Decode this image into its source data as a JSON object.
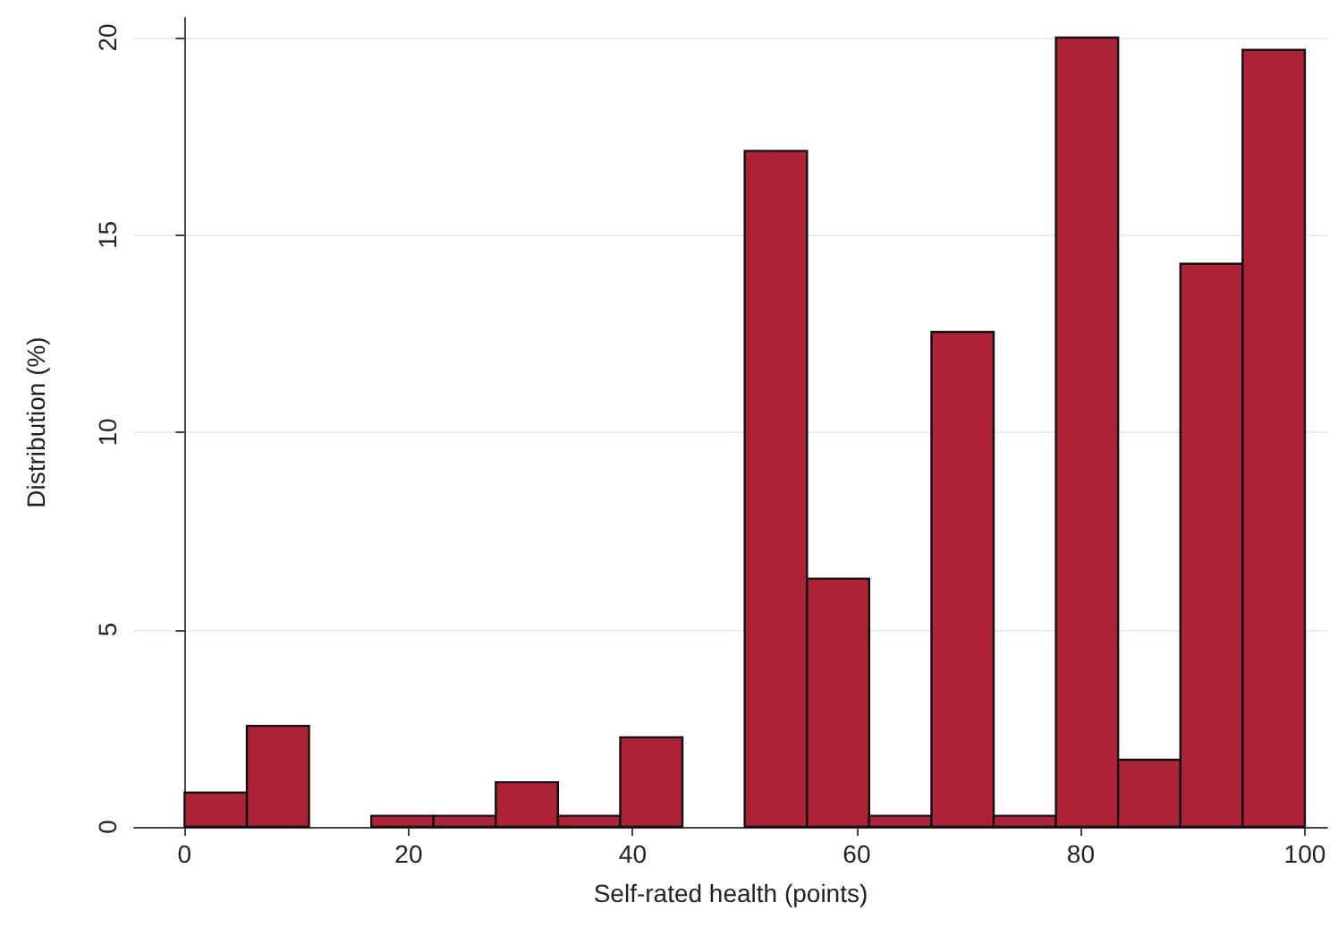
{
  "chart_data": {
    "type": "histogram",
    "xlabel": "Self-rated health (points)",
    "ylabel": "Distribution (%)",
    "bins": [
      0,
      5.56,
      11.11,
      16.67,
      22.22,
      27.78,
      33.33,
      38.89,
      44.44,
      50,
      55.56,
      61.11,
      66.67,
      72.22,
      77.78,
      83.33,
      88.89,
      94.44,
      100
    ],
    "values": [
      0.87,
      2.56,
      0,
      0.28,
      0.28,
      1.13,
      0.28,
      2.27,
      0,
      17.13,
      6.29,
      0.28,
      12.54,
      0.28,
      20.0,
      1.7,
      14.27,
      19.69
    ],
    "color": "#ae2238",
    "xlim": [
      -4.5,
      102
    ],
    "xticks": [
      0,
      20,
      40,
      60,
      80,
      100
    ],
    "ylim": [
      0,
      20.5
    ],
    "yticks": [
      0,
      5,
      10,
      15,
      20
    ],
    "grid": "y"
  }
}
